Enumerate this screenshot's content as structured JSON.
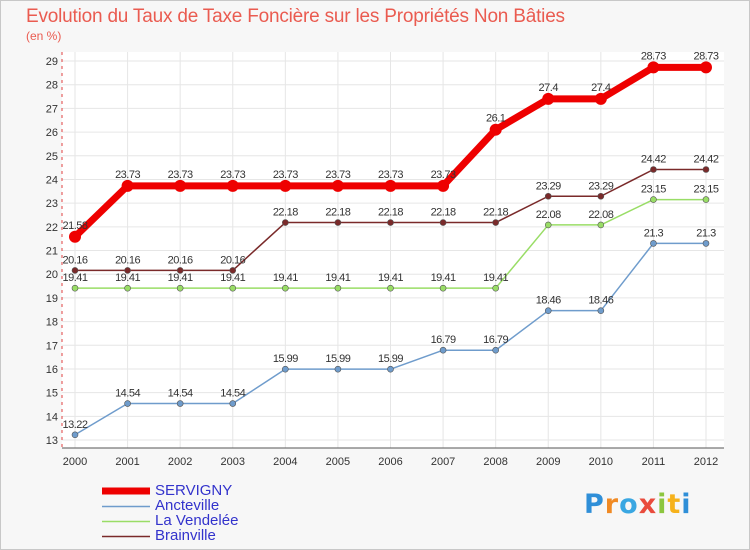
{
  "title": "Evolution du Taux de Taxe Foncière sur les Propriétés Non Bâties",
  "subtitle": "(en %)",
  "logo_text": "Proxiti",
  "colors": {
    "title": "#ea5b50",
    "grid": "#e6e6e6",
    "axis_dash": "#e04040",
    "legend_text": "#3333cc"
  },
  "chart_data": {
    "type": "line",
    "title": "Evolution du Taux de Taxe Foncière sur les Propriétés Non Bâties",
    "ylabel": "(en %)",
    "xlabel": "",
    "categories": [
      "2000",
      "2001",
      "2002",
      "2003",
      "2004",
      "2005",
      "2006",
      "2007",
      "2008",
      "2009",
      "2010",
      "2011",
      "2012"
    ],
    "ylim": [
      13,
      29
    ],
    "yticks": [
      13,
      14,
      15,
      16,
      17,
      18,
      19,
      20,
      21,
      22,
      23,
      24,
      25,
      26,
      27,
      28,
      29
    ],
    "grid": true,
    "legend_position": "bottom-left",
    "series": [
      {
        "name": "SERVIGNY",
        "color": "#ee0000",
        "values": [
          21.58,
          23.73,
          23.73,
          23.73,
          23.73,
          23.73,
          23.73,
          23.73,
          26.1,
          27.4,
          27.4,
          28.73,
          28.73
        ],
        "labels": [
          "21.58",
          "23.73",
          "23.73",
          "23.73",
          "23.73",
          "23.73",
          "23.73",
          "23.73",
          "26.1",
          "27.4",
          "27.4",
          "28.73",
          "28.73"
        ]
      },
      {
        "name": "Ancteville",
        "color": "#6f9ccc",
        "values": [
          13.22,
          14.54,
          14.54,
          14.54,
          15.99,
          15.99,
          15.99,
          16.79,
          16.79,
          18.46,
          18.46,
          21.3,
          21.3
        ],
        "labels": [
          "13.22",
          "14.54",
          "14.54",
          "14.54",
          "15.99",
          "15.99",
          "15.99",
          "16.79",
          "16.79",
          "18.46",
          "18.46",
          "21.3",
          "21.3"
        ]
      },
      {
        "name": "La Vendelée",
        "color": "#99dd66",
        "values": [
          19.41,
          19.41,
          19.41,
          19.41,
          19.41,
          19.41,
          19.41,
          19.41,
          19.41,
          22.08,
          22.08,
          23.15,
          23.15
        ],
        "labels": [
          "19.41",
          "19.41",
          "19.41",
          "19.41",
          "19.41",
          "19.41",
          "19.41",
          "19.41",
          "19.41",
          "22.08",
          "22.08",
          "23.15",
          "23.15"
        ]
      },
      {
        "name": "Brainville",
        "color": "#7a2a2a",
        "values": [
          20.16,
          20.16,
          20.16,
          20.16,
          22.18,
          22.18,
          22.18,
          22.18,
          22.18,
          23.29,
          23.29,
          24.42,
          24.42
        ],
        "labels": [
          "20.16",
          "20.16",
          "20.16",
          "20.16",
          "22.18",
          "22.18",
          "22.18",
          "22.18",
          "22.18",
          "23.29",
          "23.29",
          "24.42",
          "24.42"
        ]
      }
    ]
  }
}
